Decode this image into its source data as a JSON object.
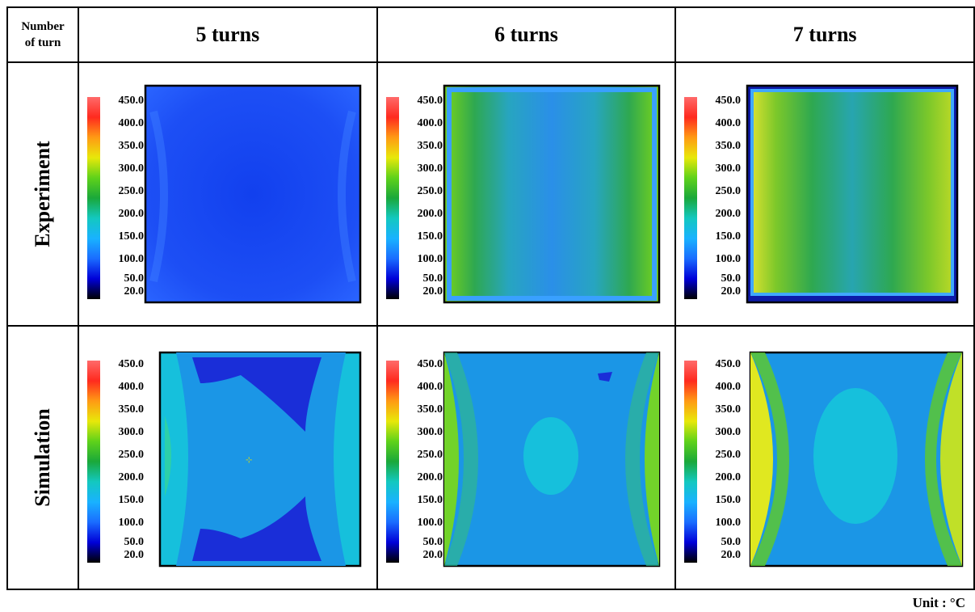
{
  "header": {
    "corner_line1": "Number",
    "corner_line2": "of turn",
    "columns": [
      "5 turns",
      "6 turns",
      "7 turns"
    ]
  },
  "rows": [
    "Experiment",
    "Simulation"
  ],
  "colorbar": {
    "labels": [
      "450.0",
      "400.0",
      "350.0",
      "300.0",
      "250.0",
      "200.0",
      "150.0",
      "100.0",
      "50.0",
      "20.0"
    ],
    "colors": [
      "#000000",
      "#0000d8",
      "#1a6cff",
      "#19b2ff",
      "#13c8c0",
      "#1aa83a",
      "#5fd21a",
      "#e8e80a",
      "#ff9a14",
      "#ff2a1e",
      "#ff6a6a"
    ]
  },
  "footer": {
    "unit": "Unit : °C"
  }
}
